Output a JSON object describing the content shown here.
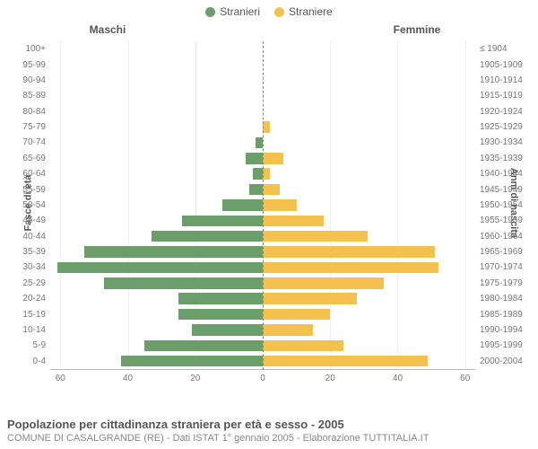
{
  "legend": {
    "male_label": "Stranieri",
    "female_label": "Straniere"
  },
  "chart": {
    "type": "population-pyramid",
    "male_header": "Maschi",
    "female_header": "Femmine",
    "y_left_title": "Fasce di età",
    "y_right_title": "Anni di nascita",
    "male_color": "#6b9e6b",
    "female_color": "#f4c04e",
    "background_color": "#ffffff",
    "grid_color": "#eeeeee",
    "axis_color": "#bbbbbb",
    "text_color": "#555555",
    "x_max": 63,
    "x_ticks": [
      60,
      40,
      20,
      0,
      20,
      40,
      60
    ],
    "rows": [
      {
        "age": "100+",
        "birth": "≤ 1904",
        "m": 0,
        "f": 0
      },
      {
        "age": "95-99",
        "birth": "1905-1909",
        "m": 0,
        "f": 0
      },
      {
        "age": "90-94",
        "birth": "1910-1914",
        "m": 0,
        "f": 0
      },
      {
        "age": "85-89",
        "birth": "1915-1919",
        "m": 0,
        "f": 0
      },
      {
        "age": "80-84",
        "birth": "1920-1924",
        "m": 0,
        "f": 0
      },
      {
        "age": "75-79",
        "birth": "1925-1929",
        "m": 0,
        "f": 2
      },
      {
        "age": "70-74",
        "birth": "1930-1934",
        "m": 2,
        "f": 0
      },
      {
        "age": "65-69",
        "birth": "1935-1939",
        "m": 5,
        "f": 6
      },
      {
        "age": "60-64",
        "birth": "1940-1944",
        "m": 3,
        "f": 2
      },
      {
        "age": "55-59",
        "birth": "1945-1949",
        "m": 4,
        "f": 5
      },
      {
        "age": "50-54",
        "birth": "1950-1954",
        "m": 12,
        "f": 10
      },
      {
        "age": "45-49",
        "birth": "1955-1959",
        "m": 24,
        "f": 18
      },
      {
        "age": "40-44",
        "birth": "1960-1964",
        "m": 33,
        "f": 31
      },
      {
        "age": "35-39",
        "birth": "1965-1969",
        "m": 53,
        "f": 51
      },
      {
        "age": "30-34",
        "birth": "1970-1974",
        "m": 61,
        "f": 52
      },
      {
        "age": "25-29",
        "birth": "1975-1979",
        "m": 47,
        "f": 36
      },
      {
        "age": "20-24",
        "birth": "1980-1984",
        "m": 25,
        "f": 28
      },
      {
        "age": "15-19",
        "birth": "1985-1989",
        "m": 25,
        "f": 20
      },
      {
        "age": "10-14",
        "birth": "1990-1994",
        "m": 21,
        "f": 15
      },
      {
        "age": "5-9",
        "birth": "1995-1999",
        "m": 35,
        "f": 24
      },
      {
        "age": "0-4",
        "birth": "2000-2004",
        "m": 42,
        "f": 49
      }
    ]
  },
  "footer": {
    "title": "Popolazione per cittadinanza straniera per età e sesso - 2005",
    "subtitle": "COMUNE DI CASALGRANDE (RE) - Dati ISTAT 1° gennaio 2005 - Elaborazione TUTTITALIA.IT"
  }
}
